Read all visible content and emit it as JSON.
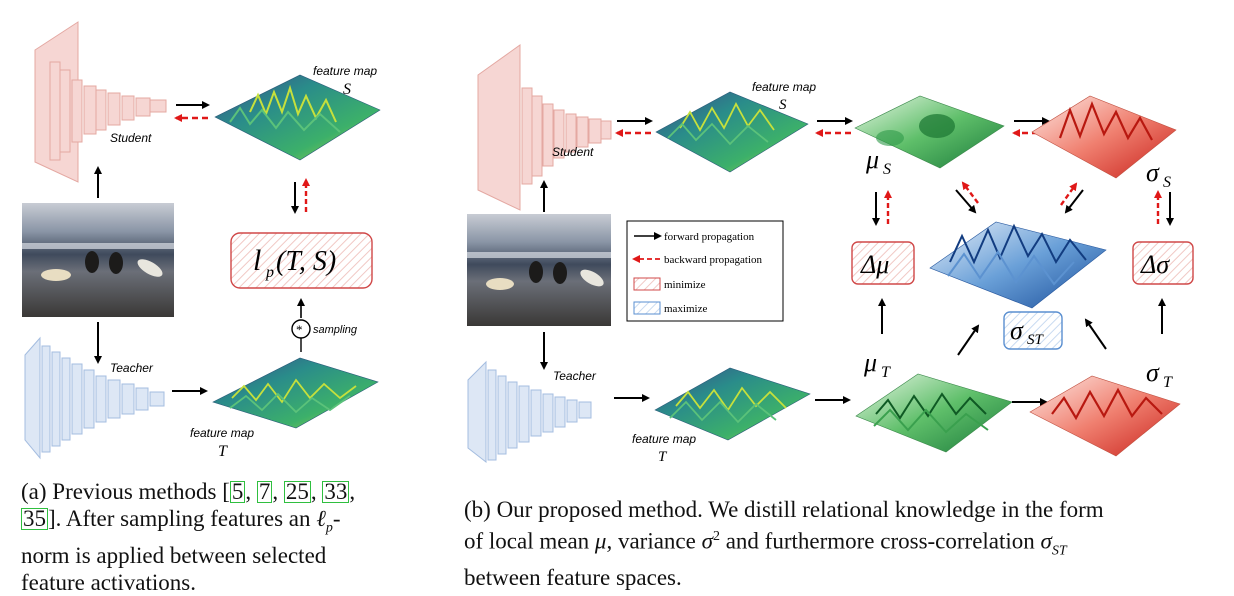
{
  "panel_a": {
    "student_label": "Student",
    "teacher_label": "Teacher",
    "feature_map_label": "feature map",
    "s_symbol": "S",
    "t_symbol": "T",
    "loss_label": "l",
    "loss_sub": "p",
    "loss_args": "(T, S)",
    "sampling_label": "sampling",
    "sampling_symbol": "*"
  },
  "panel_b": {
    "student_label": "Student",
    "teacher_label": "Teacher",
    "feature_map_label": "feature map",
    "s_symbol": "S",
    "t_symbol": "T",
    "mu": "μ",
    "sigma": "σ",
    "sub_s": "S",
    "sub_t": "T",
    "sub_st": "ST",
    "delta_mu": "Δμ",
    "delta_sigma": "Δσ",
    "legend": {
      "forward": "forward propagation",
      "backward": "backward propagation",
      "minimize": "minimize",
      "maximize": "maximize"
    }
  },
  "captions": {
    "a_1": "(a) Previous methods [",
    "a_ref1": "5",
    "a_ref2": "7",
    "a_ref3": "25",
    "a_ref4": "33",
    "a_ref5": "35",
    "a_2": "]. After sampling features an ",
    "a_lp": "ℓ",
    "a_lp_sub": "p",
    "a_3": "-",
    "a_4": "norm is applied between selected",
    "a_5": "feature activations.",
    "b_1": "(b) Our proposed method. We distill relational knowledge in the form",
    "b_2": "of local mean ",
    "b_mu": "μ",
    "b_3": ", variance ",
    "b_sigma": "σ",
    "b_sq": "2",
    "b_4": " and furthermore cross-correlation ",
    "b_sigma2": "σ",
    "b_st": "ST",
    "b_5": "between feature spaces."
  },
  "colors": {
    "student": "#f2c4c0",
    "teacher": "#c9d8ef",
    "green_map": "#2e8b57",
    "red_map": "#e0453a",
    "blue_map": "#3a7fc0",
    "backward": "#e01818",
    "minimize_border": "#d04848",
    "maximize_border": "#5a8fd0"
  }
}
